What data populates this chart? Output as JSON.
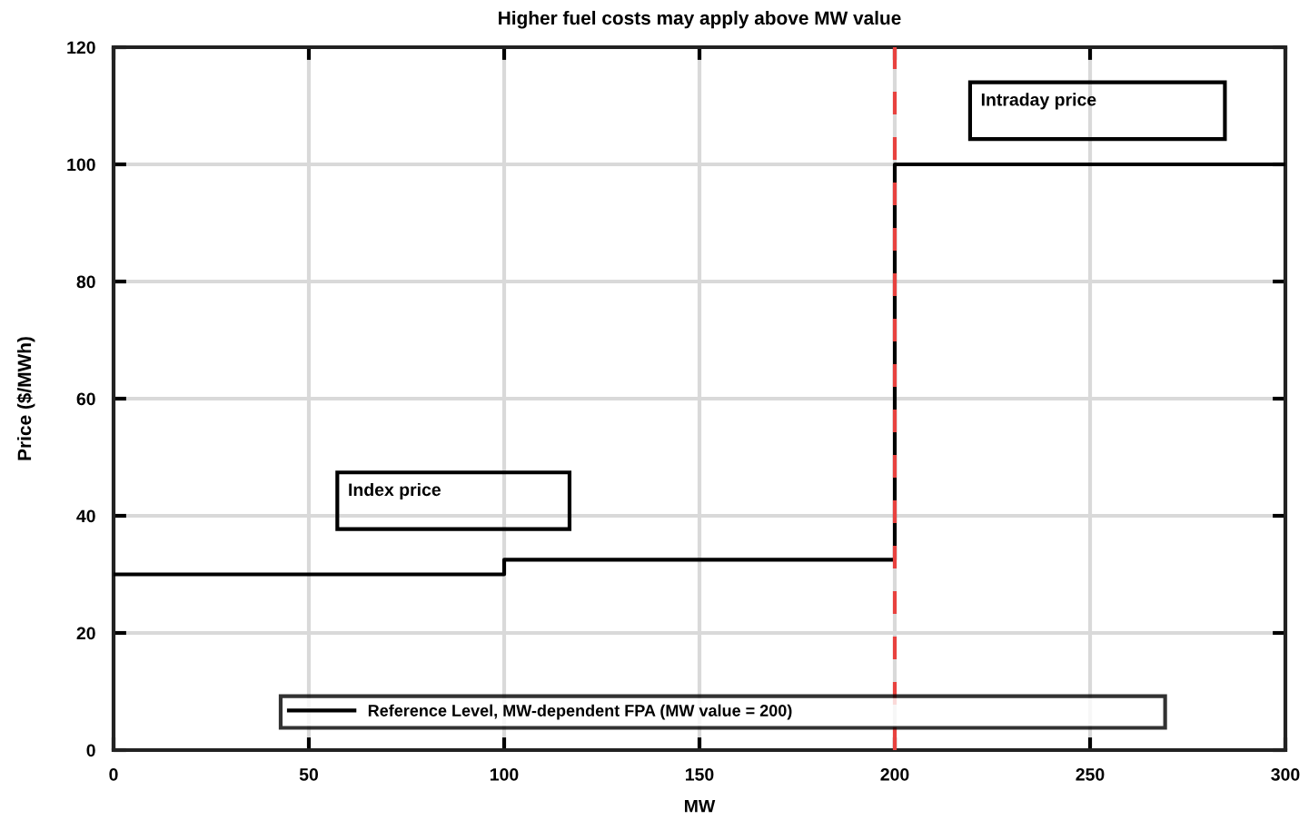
{
  "chart_data": {
    "type": "step",
    "title": "Higher fuel costs may apply above MW value",
    "xlabel": "MW",
    "ylabel": "Price ($/MWh)",
    "x": [
      0,
      100,
      200,
      300
    ],
    "series": [
      {
        "name": "Reference Level, MW-dependent FPA (MW value = 200)",
        "color": "#000000",
        "values": [
          30,
          32.5,
          100,
          100
        ]
      }
    ],
    "xlim": [
      0,
      300
    ],
    "xticks": [
      0,
      50,
      100,
      150,
      200,
      250,
      300
    ],
    "ylim": [
      0,
      120
    ],
    "yticks": [
      0,
      20,
      40,
      60,
      80,
      100,
      120
    ],
    "ref_lines": [
      {
        "axis": "x",
        "value": 200,
        "label": null,
        "color": "#e8423f",
        "line_style": "dashed"
      }
    ],
    "annotations": [
      "Index price",
      "Intraday price"
    ],
    "grid": true,
    "legend": "bottom"
  }
}
